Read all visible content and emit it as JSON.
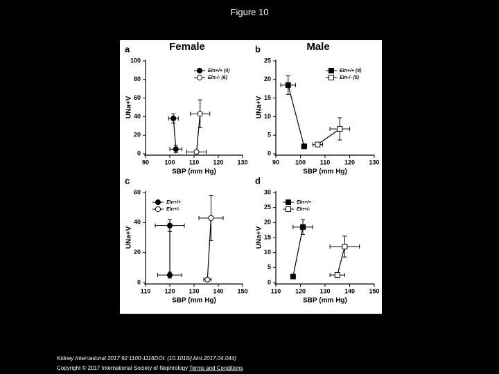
{
  "title": "Figure 10",
  "footer": {
    "citation": "Kidney International 2017 92:1100-1116DOI: (10.1016/j.kint.2017.04.044)",
    "copyright": "Copyright © 2017 International Society of Nephrology",
    "link": "Terms and Conditions"
  },
  "chart_data": [
    {
      "type": "scatter",
      "panel_label": "a",
      "title": "Female",
      "xlabel": "SBP (mm Hg)",
      "ylabel": "UNa+V",
      "xlim": [
        90,
        130
      ],
      "xticks": [
        90,
        100,
        110,
        120,
        130
      ],
      "ylim": [
        0,
        100
      ],
      "yticks": [
        0,
        20,
        40,
        60,
        80,
        100
      ],
      "legend": "upper right",
      "series": [
        {
          "name": "Eln+/+ (4)",
          "color": "#000000",
          "marker": "circle",
          "filled": true,
          "x": [
            101.5,
            102.5
          ],
          "y": [
            38,
            5
          ],
          "xerr": [
            2,
            2.5
          ],
          "yerr": [
            5,
            4
          ]
        },
        {
          "name": "Eln-/- (6)",
          "color": "#000000",
          "marker": "circle",
          "filled": false,
          "x": [
            112.5,
            111
          ],
          "y": [
            43,
            2
          ],
          "xerr": [
            4,
            4
          ],
          "yerr": [
            15,
            1
          ]
        }
      ]
    },
    {
      "type": "scatter",
      "panel_label": "b",
      "title": "Male",
      "xlabel": "SBP (mm Hg)",
      "ylabel": "UNa+V",
      "xlim": [
        90,
        130
      ],
      "xticks": [
        90,
        100,
        110,
        120,
        130
      ],
      "ylim": [
        0,
        25
      ],
      "yticks": [
        0,
        5,
        10,
        15,
        20,
        25
      ],
      "legend": "upper right",
      "series": [
        {
          "name": "Eln+/+ (4)",
          "color": "#000000",
          "marker": "square",
          "filled": true,
          "x": [
            95,
            101.5
          ],
          "y": [
            18.5,
            2
          ],
          "xerr": [
            3,
            1
          ],
          "yerr": [
            2.5,
            0.3
          ]
        },
        {
          "name": "Eln-/- (5)",
          "color": "#000000",
          "marker": "square",
          "filled": false,
          "x": [
            107,
            116
          ],
          "y": [
            2.5,
            6.7
          ],
          "xerr": [
            2,
            4
          ],
          "yerr": [
            0.5,
            3
          ]
        }
      ]
    },
    {
      "type": "scatter",
      "panel_label": "c",
      "xlabel": "SBP (mm Hg)",
      "ylabel": "UNa+V",
      "xlim": [
        110,
        150
      ],
      "xticks": [
        110,
        120,
        130,
        140,
        150
      ],
      "ylim": [
        0,
        60
      ],
      "yticks": [
        0,
        20,
        40,
        60
      ],
      "legend": "upper left",
      "series": [
        {
          "name": "Eln+/+",
          "color": "#000000",
          "marker": "circle",
          "filled": true,
          "x": [
            120,
            120
          ],
          "y": [
            38,
            5
          ],
          "xerr": [
            6,
            5
          ],
          "yerr": [
            4,
            2
          ]
        },
        {
          "name": "Eln+/-",
          "color": "#000000",
          "marker": "circle",
          "filled": false,
          "x": [
            137,
            135.5
          ],
          "y": [
            43,
            2
          ],
          "xerr": [
            5,
            1.5
          ],
          "yerr": [
            15,
            1
          ]
        }
      ]
    },
    {
      "type": "scatter",
      "panel_label": "d",
      "xlabel": "SBP (mm Hg)",
      "ylabel": "UNa+V",
      "xlim": [
        110,
        150
      ],
      "xticks": [
        110,
        120,
        130,
        140,
        150
      ],
      "ylim": [
        0,
        30
      ],
      "yticks": [
        0,
        5,
        10,
        15,
        20,
        25,
        30
      ],
      "legend": "upper left",
      "series": [
        {
          "name": "Eln+/+",
          "color": "#000000",
          "marker": "square",
          "filled": true,
          "x": [
            121,
            117
          ],
          "y": [
            18.5,
            2
          ],
          "xerr": [
            4,
            0.5
          ],
          "yerr": [
            2.5,
            0.3
          ]
        },
        {
          "name": "Eln+/-",
          "color": "#000000",
          "marker": "square",
          "filled": false,
          "x": [
            138,
            135
          ],
          "y": [
            12,
            2.5
          ],
          "xerr": [
            6,
            3
          ],
          "yerr": [
            3.5,
            0.5
          ]
        }
      ]
    }
  ]
}
